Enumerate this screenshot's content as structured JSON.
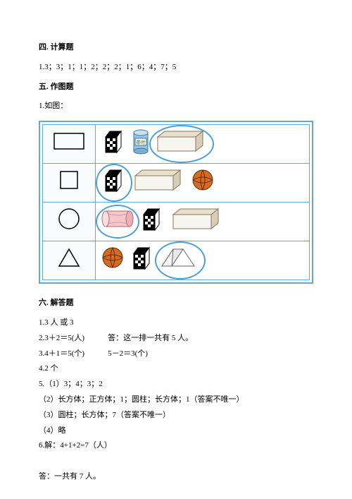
{
  "section4": {
    "title": "四. 计算题",
    "line": "1.3；3；1；1；2；2；2；1；6；4；7；5"
  },
  "section5": {
    "title": "五. 作图题",
    "subtitle": "1.如图：",
    "table": {
      "border_color": "#62a9d6",
      "ring_color": "#4aa0d9",
      "rows": [
        {
          "left_shape": "rectangle",
          "items": [
            {
              "type": "cube",
              "circled": false
            },
            {
              "type": "cylinder_tea",
              "circled": false
            },
            {
              "type": "cuboid",
              "circled": true
            }
          ]
        },
        {
          "left_shape": "square",
          "items": [
            {
              "type": "cube",
              "circled": true
            },
            {
              "type": "cuboid",
              "circled": false
            },
            {
              "type": "ball",
              "circled": false
            }
          ]
        },
        {
          "left_shape": "circle",
          "items": [
            {
              "type": "cylinder_pink",
              "circled": true
            },
            {
              "type": "cube",
              "circled": false
            },
            {
              "type": "cuboid",
              "circled": false
            }
          ]
        },
        {
          "left_shape": "triangle",
          "items": [
            {
              "type": "ball",
              "circled": false
            },
            {
              "type": "cube",
              "circled": false
            },
            {
              "type": "prism",
              "circled": true
            }
          ]
        }
      ]
    }
  },
  "section6": {
    "title": "六. 解答题",
    "lines": [
      "1.3 人 或 3",
      "2.3＋2＝5(人)　　　答：这一排一共有 5 人。",
      "3.4＋1＝5(个)　　　5－2＝3(个)",
      "4.2 个",
      "5.（1）3；4；3；2",
      "（2）长方体；正方体；1；圆柱；长方体；1（答案不唯一）",
      "（3）圆柱；长方体；7（答案不唯一）",
      "（4）略",
      "6.解：4+1+2=7（人）",
      "",
      "答：一共有 7 人。"
    ]
  }
}
